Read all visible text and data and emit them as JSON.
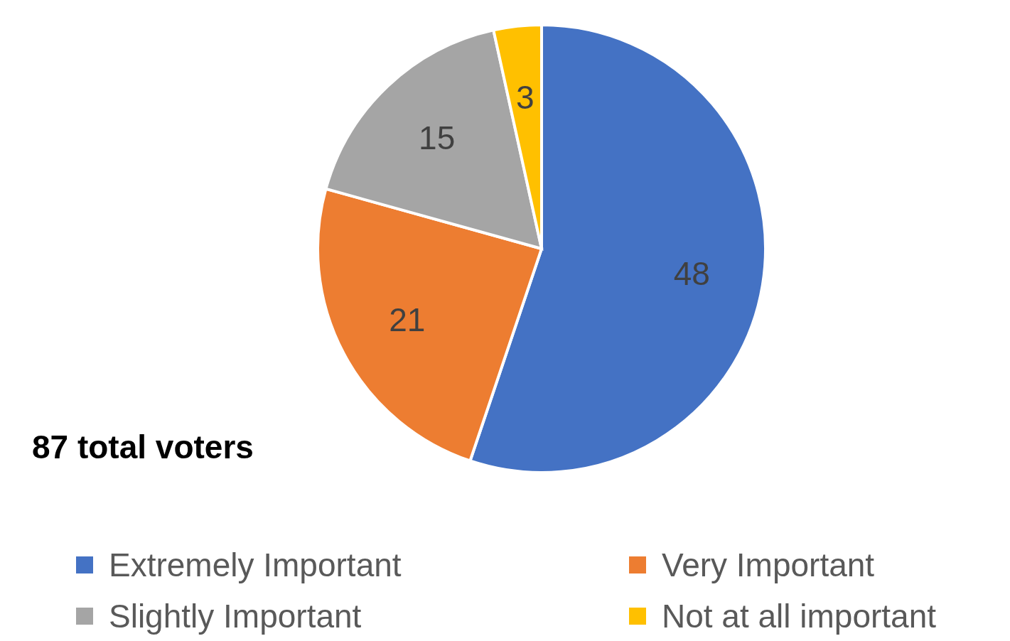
{
  "chart_data": {
    "type": "pie",
    "categories": [
      "Extremely Important",
      "Very Important",
      "Slightly Important",
      "Not at all important"
    ],
    "values": [
      48,
      21,
      15,
      3
    ],
    "colors": [
      "#4472c4",
      "#ed7d31",
      "#a5a5a5",
      "#ffc000"
    ],
    "data_labels": true,
    "legend": "bottom",
    "annotations": [
      "87 total voters"
    ]
  }
}
